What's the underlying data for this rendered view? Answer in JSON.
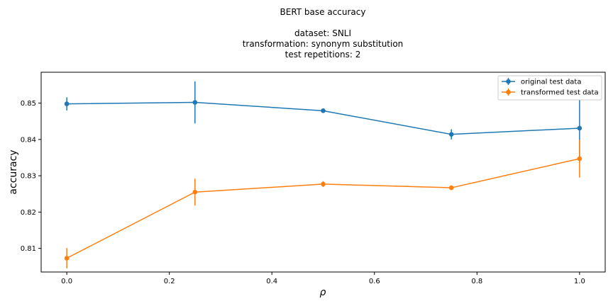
{
  "chart_data": {
    "type": "line",
    "title_lines": [
      "BERT base accuracy",
      "",
      "dataset: SNLI",
      "transformation: synonym substitution",
      "test repetitions: 2"
    ],
    "xlabel": "ρ",
    "ylabel": "accuracy",
    "xlim": [
      -0.05,
      1.05
    ],
    "ylim": [
      0.8035,
      0.8585
    ],
    "x_ticks": [
      0.0,
      0.2,
      0.4,
      0.6,
      0.8,
      1.0
    ],
    "x_tick_labels": [
      "0.0",
      "0.2",
      "0.4",
      "0.6",
      "0.8",
      "1.0"
    ],
    "y_ticks": [
      0.81,
      0.82,
      0.83,
      0.84,
      0.85
    ],
    "y_tick_labels": [
      "0.81",
      "0.82",
      "0.83",
      "0.84",
      "0.85"
    ],
    "x": [
      0.0,
      0.25,
      0.5,
      0.75,
      1.0
    ],
    "grid": false,
    "legend_position": "top-right",
    "series": [
      {
        "name": "original test data",
        "color": "#1f77b4",
        "values": [
          0.8498,
          0.8502,
          0.8479,
          0.8414,
          0.8431
        ],
        "errors": [
          0.0018,
          0.0058,
          0.0003,
          0.0014,
          0.0095
        ]
      },
      {
        "name": "transformed test data",
        "color": "#ff7f0e",
        "values": [
          0.8073,
          0.8255,
          0.8277,
          0.8267,
          0.8347
        ],
        "errors": [
          0.0028,
          0.0037,
          0.0008,
          0.0003,
          0.0052
        ]
      }
    ]
  }
}
